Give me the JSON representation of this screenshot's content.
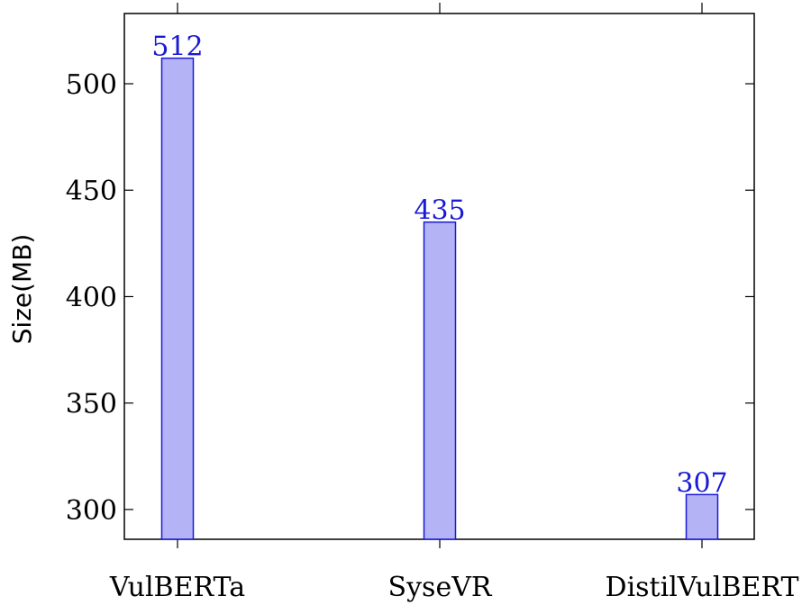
{
  "chart_data": {
    "type": "bar",
    "title": "",
    "xlabel": "",
    "ylabel": "Size(MB)",
    "categories": [
      "VulBERTa",
      "SyseVR",
      "DistilVulBERT"
    ],
    "values": [
      512,
      435,
      307
    ],
    "data_labels": [
      "512",
      "435",
      "307"
    ],
    "ylim": [
      286,
      533
    ],
    "yticks": [
      300,
      350,
      400,
      450,
      500
    ],
    "ytick_labels": [
      "300",
      "350",
      "400",
      "450",
      "500"
    ],
    "grid": false,
    "legend": "none",
    "bar_fill": "#b3b3f5",
    "bar_stroke": "#1a1ad6",
    "label_color": "#1a1ad6"
  }
}
